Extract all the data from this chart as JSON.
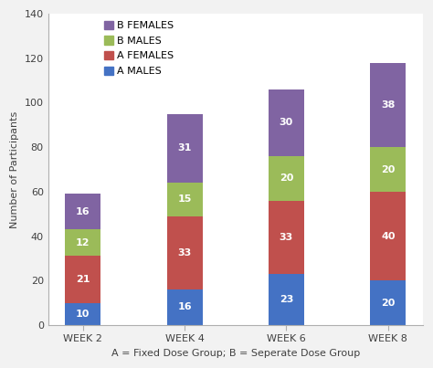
{
  "categories": [
    "WEEK 2",
    "WEEK 4",
    "WEEK 6",
    "WEEK 8"
  ],
  "a_males": [
    10,
    16,
    23,
    20
  ],
  "a_females": [
    21,
    33,
    33,
    40
  ],
  "b_males": [
    12,
    15,
    20,
    20
  ],
  "b_females": [
    16,
    31,
    30,
    38
  ],
  "colors": {
    "a_males": "#4472c4",
    "a_females": "#c0504d",
    "b_males": "#9bbb59",
    "b_females": "#8064a2"
  },
  "bg_color": "#f2f2f2",
  "plot_bg_color": "#ffffff",
  "grid_color": "#ffffff",
  "ylabel": "Number of Participants",
  "xlabel": "A = Fixed Dose Group; B = Seperate Dose Group",
  "ylim": [
    0,
    140
  ],
  "yticks": [
    0,
    20,
    40,
    60,
    80,
    100,
    120,
    140
  ],
  "bar_width": 0.35,
  "label_fontsize": 8,
  "tick_fontsize": 8,
  "legend_fontsize": 8,
  "value_fontsize": 8,
  "xlabel_fontsize": 8
}
